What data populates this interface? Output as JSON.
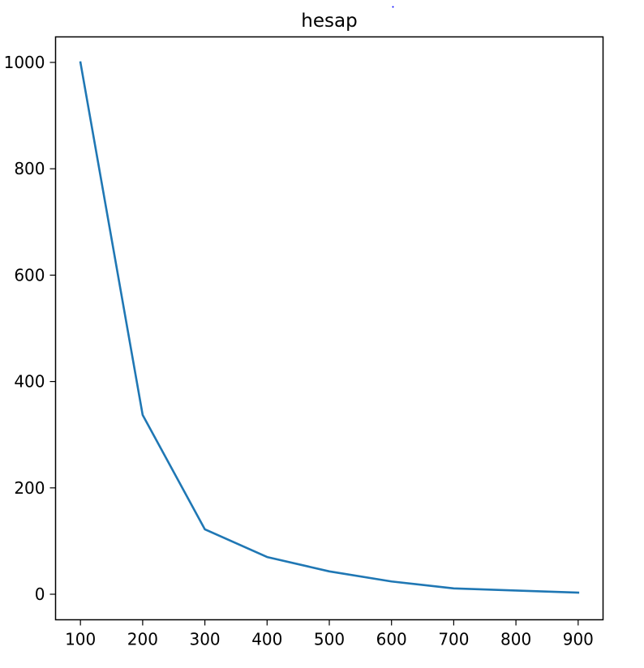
{
  "chart_data": {
    "type": "line",
    "title": "hesap",
    "xlabel": "",
    "ylabel": "",
    "x": [
      100,
      200,
      300,
      400,
      500,
      600,
      700,
      800,
      900
    ],
    "series": [
      {
        "values": [
          1000,
          337,
          122,
          70,
          43,
          24,
          11,
          7,
          3
        ],
        "color": "#1f77b4"
      }
    ],
    "xlim": [
      60,
      940
    ],
    "ylim": [
      -48,
      1048
    ],
    "xticks": [
      100,
      200,
      300,
      400,
      500,
      600,
      700,
      800,
      900
    ],
    "yticks": [
      0,
      200,
      400,
      600,
      800,
      1000
    ],
    "grid": false,
    "legend": "none"
  }
}
